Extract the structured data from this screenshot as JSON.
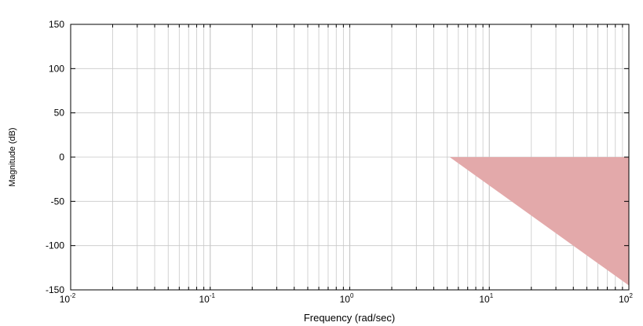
{
  "chart_data": {
    "type": "area",
    "xlabel": "Frequency (rad/sec)",
    "ylabel": "Magnitude (dB)",
    "x_scale": "log",
    "xlim": [
      0.01,
      100
    ],
    "ylim": [
      -150,
      150
    ],
    "x_ticks": [
      {
        "base": "10",
        "exp": "-2",
        "value": 0.01
      },
      {
        "base": "10",
        "exp": "-1",
        "value": 0.1
      },
      {
        "base": "10",
        "exp": "0",
        "value": 1
      },
      {
        "base": "10",
        "exp": "1",
        "value": 10
      },
      {
        "base": "10",
        "exp": "2",
        "value": 100
      }
    ],
    "y_ticks": [
      "150",
      "100",
      "50",
      "0",
      "-50",
      "-100",
      "-150"
    ],
    "grid": true,
    "region": {
      "color": "#e3a9aa",
      "points": [
        {
          "x": 5.2,
          "y": 0
        },
        {
          "x": 100,
          "y": 0
        },
        {
          "x": 100,
          "y": -145
        }
      ]
    }
  }
}
